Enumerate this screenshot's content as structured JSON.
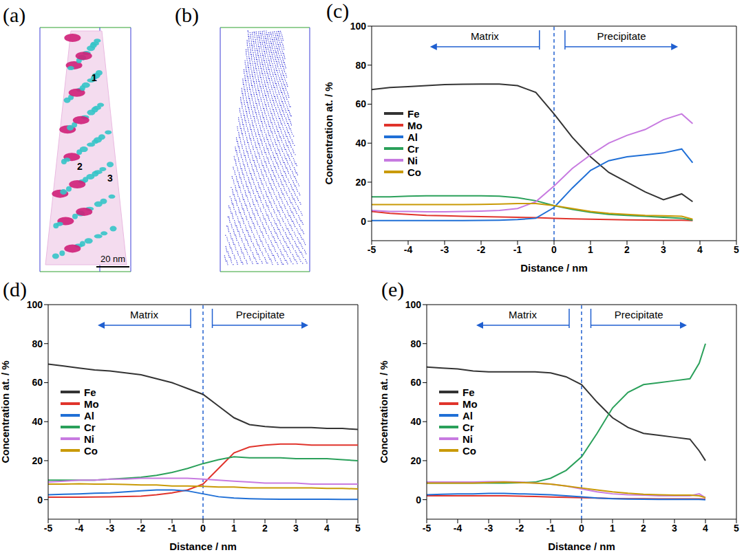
{
  "images": [
    {
      "panel": "(a)",
      "markers": [
        "1",
        "2",
        "3"
      ],
      "scale_bar": "20 nm"
    },
    {
      "panel": "(b)"
    }
  ],
  "chart_data": [
    {
      "type": "line",
      "panel": "(c)",
      "x_label": "Distance / nm",
      "y_label": "Concentration at. / %",
      "annotations": [
        "Matrix",
        "Precipitate"
      ],
      "reference_x": 0,
      "grid": false,
      "legend": "left",
      "xlim": [
        -5,
        5
      ],
      "xticks": [
        -5,
        -4,
        -3,
        -2,
        -1,
        0,
        1,
        2,
        3,
        4,
        5
      ],
      "ylim": [
        -10,
        100
      ],
      "yticks": [
        0,
        20,
        40,
        60,
        80,
        100
      ],
      "x": [
        -5,
        -4.5,
        -4,
        -3.5,
        -3,
        -2.5,
        -2,
        -1.5,
        -1,
        -0.5,
        0,
        0.5,
        1,
        1.5,
        2,
        2.5,
        3,
        3.5,
        3.8
      ],
      "series": [
        {
          "name": "Fe",
          "color": "#333333",
          "values": [
            67.5,
            68.5,
            69,
            69.5,
            70,
            70.2,
            70.3,
            70.3,
            69.5,
            66,
            55,
            43,
            33,
            25,
            20,
            15,
            11,
            14,
            10
          ]
        },
        {
          "name": "Mo",
          "color": "#e0332b",
          "values": [
            5,
            4,
            3.5,
            3,
            2.8,
            2.5,
            2.3,
            2.2,
            2,
            1.8,
            1.5,
            1.2,
            1,
            0.8,
            0.7,
            0.6,
            0.5,
            0.5,
            0.3
          ]
        },
        {
          "name": "Al",
          "color": "#1f6fd6",
          "values": [
            0.3,
            0.3,
            0.3,
            0.3,
            0.3,
            0.3,
            0.4,
            0.5,
            0.8,
            1.5,
            7,
            17,
            26,
            31,
            33,
            34,
            35,
            37,
            30
          ]
        },
        {
          "name": "Cr",
          "color": "#2aa05a",
          "values": [
            12.5,
            12.5,
            12.8,
            13,
            13,
            13,
            13,
            12.8,
            12,
            10.5,
            8,
            6,
            4.5,
            3.5,
            3,
            2.5,
            2,
            1.5,
            0.5
          ]
        },
        {
          "name": "Ni",
          "color": "#c77ae0",
          "values": [
            5.5,
            5,
            5,
            4.8,
            4.8,
            5,
            5.2,
            5.5,
            6.5,
            10,
            18,
            27,
            34,
            40,
            44,
            47,
            52,
            55,
            50
          ]
        },
        {
          "name": "Co",
          "color": "#c99a06",
          "values": [
            8.5,
            8.5,
            8.5,
            8.5,
            8.5,
            8.5,
            8.6,
            8.8,
            9,
            9,
            8,
            6.5,
            5,
            4,
            3.5,
            3,
            2.8,
            2.5,
            1
          ]
        }
      ]
    },
    {
      "type": "line",
      "panel": "(d)",
      "x_label": "Distance / nm",
      "y_label": "Concentration at. / %",
      "annotations": [
        "Matrix",
        "Precipitate"
      ],
      "reference_x": 0,
      "grid": false,
      "legend": "left",
      "xlim": [
        -5,
        5
      ],
      "xticks": [
        -5,
        -4,
        -3,
        -2,
        -1,
        0,
        1,
        2,
        3,
        4,
        5
      ],
      "ylim": [
        -10,
        100
      ],
      "yticks": [
        0,
        20,
        40,
        60,
        80,
        100
      ],
      "x": [
        -5,
        -4.5,
        -4,
        -3.5,
        -3,
        -2.5,
        -2,
        -1.5,
        -1,
        -0.5,
        0,
        0.5,
        1,
        1.5,
        2,
        2.5,
        3,
        3.5,
        4,
        4.5,
        5
      ],
      "series": [
        {
          "name": "Fe",
          "color": "#333333",
          "values": [
            69.5,
            68.5,
            67.5,
            66.5,
            66,
            65,
            64,
            62,
            60,
            57,
            54,
            48,
            42,
            38.5,
            37.5,
            37,
            37,
            37,
            36.5,
            36.5,
            36
          ]
        },
        {
          "name": "Mo",
          "color": "#e0332b",
          "values": [
            1.3,
            1.3,
            1.3,
            1.4,
            1.5,
            1.6,
            1.8,
            2.5,
            3.5,
            5,
            8,
            16,
            24,
            27,
            28,
            28.5,
            28.5,
            28,
            28,
            28,
            28
          ]
        },
        {
          "name": "Al",
          "color": "#1f6fd6",
          "values": [
            2.5,
            2.8,
            3,
            3.3,
            3.5,
            4,
            4.5,
            5,
            5,
            4.5,
            3,
            1.5,
            0.8,
            0.5,
            0.3,
            0.2,
            0.2,
            0.2,
            0.2,
            0.1,
            0.1
          ]
        },
        {
          "name": "Cr",
          "color": "#2aa05a",
          "values": [
            10,
            10,
            10,
            10,
            10.5,
            11,
            11.5,
            12.5,
            14,
            16,
            18.5,
            20.5,
            22,
            21.5,
            21.5,
            21.5,
            21,
            21,
            21,
            20.5,
            20
          ]
        },
        {
          "name": "Ni",
          "color": "#c77ae0",
          "values": [
            9,
            9.5,
            10,
            10,
            10.5,
            10.5,
            11,
            11,
            11,
            11,
            10.5,
            10,
            9.5,
            9,
            8.5,
            8.5,
            8.5,
            8,
            8,
            8,
            8
          ]
        },
        {
          "name": "Co",
          "color": "#c99a06",
          "values": [
            8,
            8,
            8.2,
            8,
            8,
            7.8,
            7.5,
            7.5,
            7,
            7,
            6.8,
            6.5,
            6.5,
            6,
            6,
            6,
            6,
            6,
            5.8,
            5.8,
            5.5
          ]
        }
      ]
    },
    {
      "type": "line",
      "panel": "(e)",
      "x_label": "Distance / nm",
      "y_label": "Concentration at. / %",
      "annotations": [
        "Matrix",
        "Precipitate"
      ],
      "reference_x": 0,
      "grid": false,
      "legend": "left",
      "xlim": [
        -5,
        5
      ],
      "xticks": [
        -5,
        -4,
        -3,
        -2,
        -1,
        0,
        1,
        2,
        3,
        4,
        5
      ],
      "ylim": [
        -10,
        100
      ],
      "yticks": [
        0,
        20,
        40,
        60,
        80,
        100
      ],
      "x": [
        -5,
        -4.5,
        -4,
        -3.5,
        -3,
        -2.5,
        -2,
        -1.5,
        -1,
        -0.5,
        0,
        0.5,
        1,
        1.5,
        2,
        2.5,
        3,
        3.5,
        3.8,
        4
      ],
      "series": [
        {
          "name": "Fe",
          "color": "#333333",
          "values": [
            68,
            67.5,
            67,
            66,
            65.5,
            65.5,
            65.5,
            65.5,
            65,
            63,
            59,
            50,
            42,
            37,
            34,
            33,
            32,
            31,
            25,
            20
          ]
        },
        {
          "name": "Mo",
          "color": "#e0332b",
          "values": [
            2,
            2,
            2,
            2,
            2,
            2,
            1.8,
            1.6,
            1.4,
            1.2,
            1,
            0.8,
            0.6,
            0.5,
            0.5,
            0.4,
            0.4,
            0.4,
            0.4,
            0.2
          ]
        },
        {
          "name": "Al",
          "color": "#1f6fd6",
          "values": [
            2.5,
            2.8,
            3,
            3,
            3.2,
            3.2,
            3,
            2.8,
            2.5,
            2,
            1.5,
            0.8,
            0.5,
            0.3,
            0.2,
            0.1,
            0.1,
            0.1,
            0.1,
            0
          ]
        },
        {
          "name": "Cr",
          "color": "#2aa05a",
          "values": [
            8.5,
            8.5,
            8.5,
            8.5,
            8.5,
            8.5,
            8.7,
            9,
            11,
            15,
            22,
            34,
            47,
            55,
            59,
            60,
            61,
            62,
            70,
            80
          ]
        },
        {
          "name": "Ni",
          "color": "#c77ae0",
          "values": [
            9,
            9,
            9,
            9,
            9.2,
            9.2,
            9,
            8.5,
            8,
            7,
            5.5,
            4,
            3,
            2.5,
            2.3,
            2,
            2,
            2,
            3,
            1
          ]
        },
        {
          "name": "Co",
          "color": "#c99a06",
          "values": [
            8.5,
            8.5,
            8.5,
            8.5,
            8.8,
            9,
            8.8,
            8.5,
            8,
            7,
            6,
            5,
            4,
            3.3,
            2.8,
            2.5,
            2.3,
            2.3,
            2,
            1
          ]
        }
      ]
    }
  ]
}
